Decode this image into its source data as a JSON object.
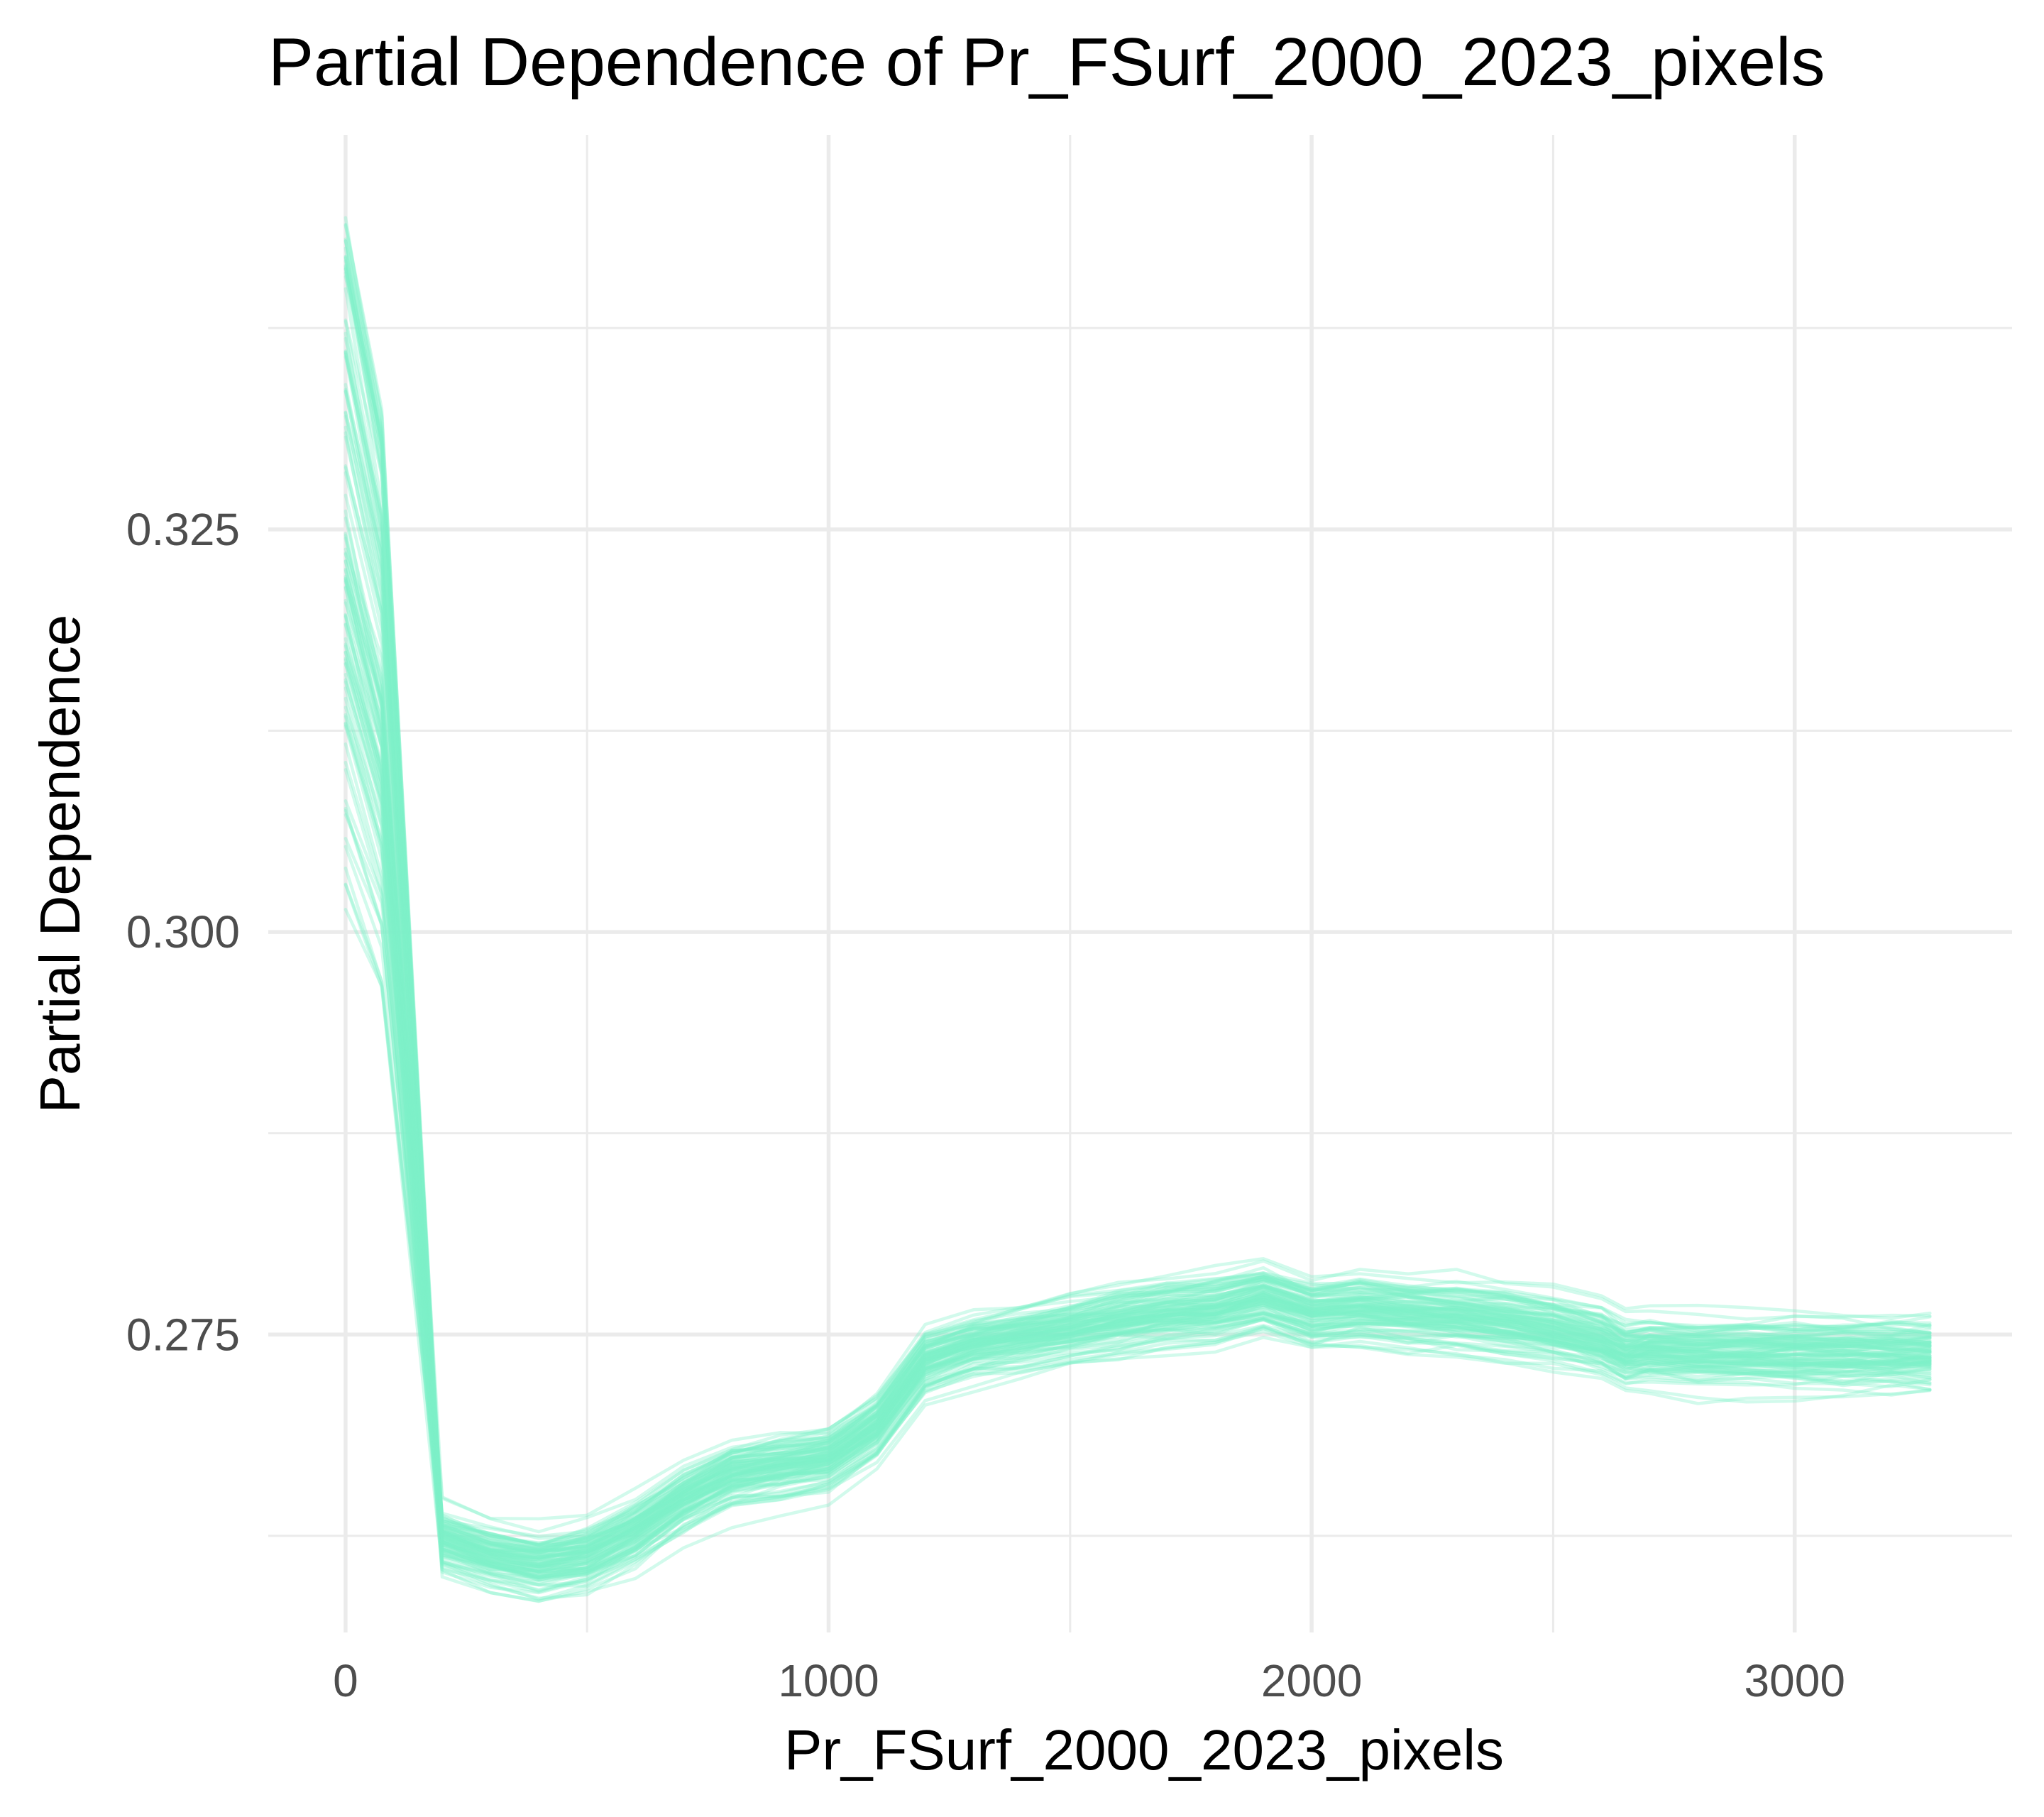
{
  "chart_data": {
    "type": "line",
    "title": "Partial Dependence of Pr_FSurf_2000_2023_pixels",
    "xlabel": "Pr_FSurf_2000_2023_pixels",
    "ylabel": "Partial Dependence",
    "xlim": [
      -160,
      3450
    ],
    "ylim": [
      0.2565,
      0.3495
    ],
    "x_ticks": [
      0,
      1000,
      2000,
      3000
    ],
    "x_tick_labels": [
      "0",
      "1000",
      "2000",
      "3000"
    ],
    "x_minor_ticks": [
      500,
      1500,
      2500
    ],
    "y_ticks": [
      0.275,
      0.3,
      0.325
    ],
    "y_tick_labels": [
      "0.275",
      "0.300",
      "0.325"
    ],
    "y_minor_ticks": [
      0.2625,
      0.2875,
      0.3125,
      0.3375
    ],
    "grid": true,
    "legend": "none",
    "line_color": "#7ff0c8",
    "line_opacity": 0.35,
    "series_count": 100,
    "x": [
      0,
      75,
      200,
      300,
      400,
      500,
      600,
      700,
      800,
      900,
      1000,
      1100,
      1200,
      1300,
      1400,
      1500,
      1600,
      1700,
      1800,
      1900,
      2000,
      2100,
      2200,
      2300,
      2400,
      2500,
      2600,
      2650,
      2700,
      2800,
      2900,
      3000,
      3100,
      3200,
      3280
    ],
    "mean_curve": [
      0.323,
      0.314,
      0.2625,
      0.2615,
      0.261,
      0.2615,
      0.263,
      0.265,
      0.2665,
      0.267,
      0.2675,
      0.2695,
      0.2735,
      0.2745,
      0.275,
      0.2755,
      0.276,
      0.2765,
      0.2768,
      0.2775,
      0.2765,
      0.2768,
      0.2765,
      0.2763,
      0.276,
      0.2755,
      0.2748,
      0.274,
      0.2742,
      0.274,
      0.274,
      0.274,
      0.274,
      0.274,
      0.274
    ],
    "start_range": [
      0.301,
      0.3445
    ],
    "end_range": [
      0.2685,
      0.282
    ]
  }
}
